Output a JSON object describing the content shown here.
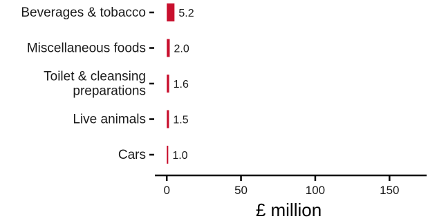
{
  "chart_data": {
    "type": "bar",
    "orientation": "horizontal",
    "categories": [
      [
        "Beverages & tobacco"
      ],
      [
        "Miscellaneous foods"
      ],
      [
        "Toilet & cleansing",
        "preparations"
      ],
      [
        "Live animals"
      ],
      [
        "Cars"
      ]
    ],
    "values": [
      5.2,
      2.0,
      1.6,
      1.5,
      1.0
    ],
    "value_labels": [
      "5.2",
      "2.0",
      "1.6",
      "1.5",
      "1.0"
    ],
    "xlabel": "£ million",
    "xlim": [
      -8,
      175
    ],
    "xticks": [
      0,
      50,
      100,
      150
    ],
    "xtick_labels": [
      "0",
      "50",
      "100",
      "150"
    ],
    "bar_color": "#c8102e",
    "grid": false,
    "legend": "none"
  }
}
